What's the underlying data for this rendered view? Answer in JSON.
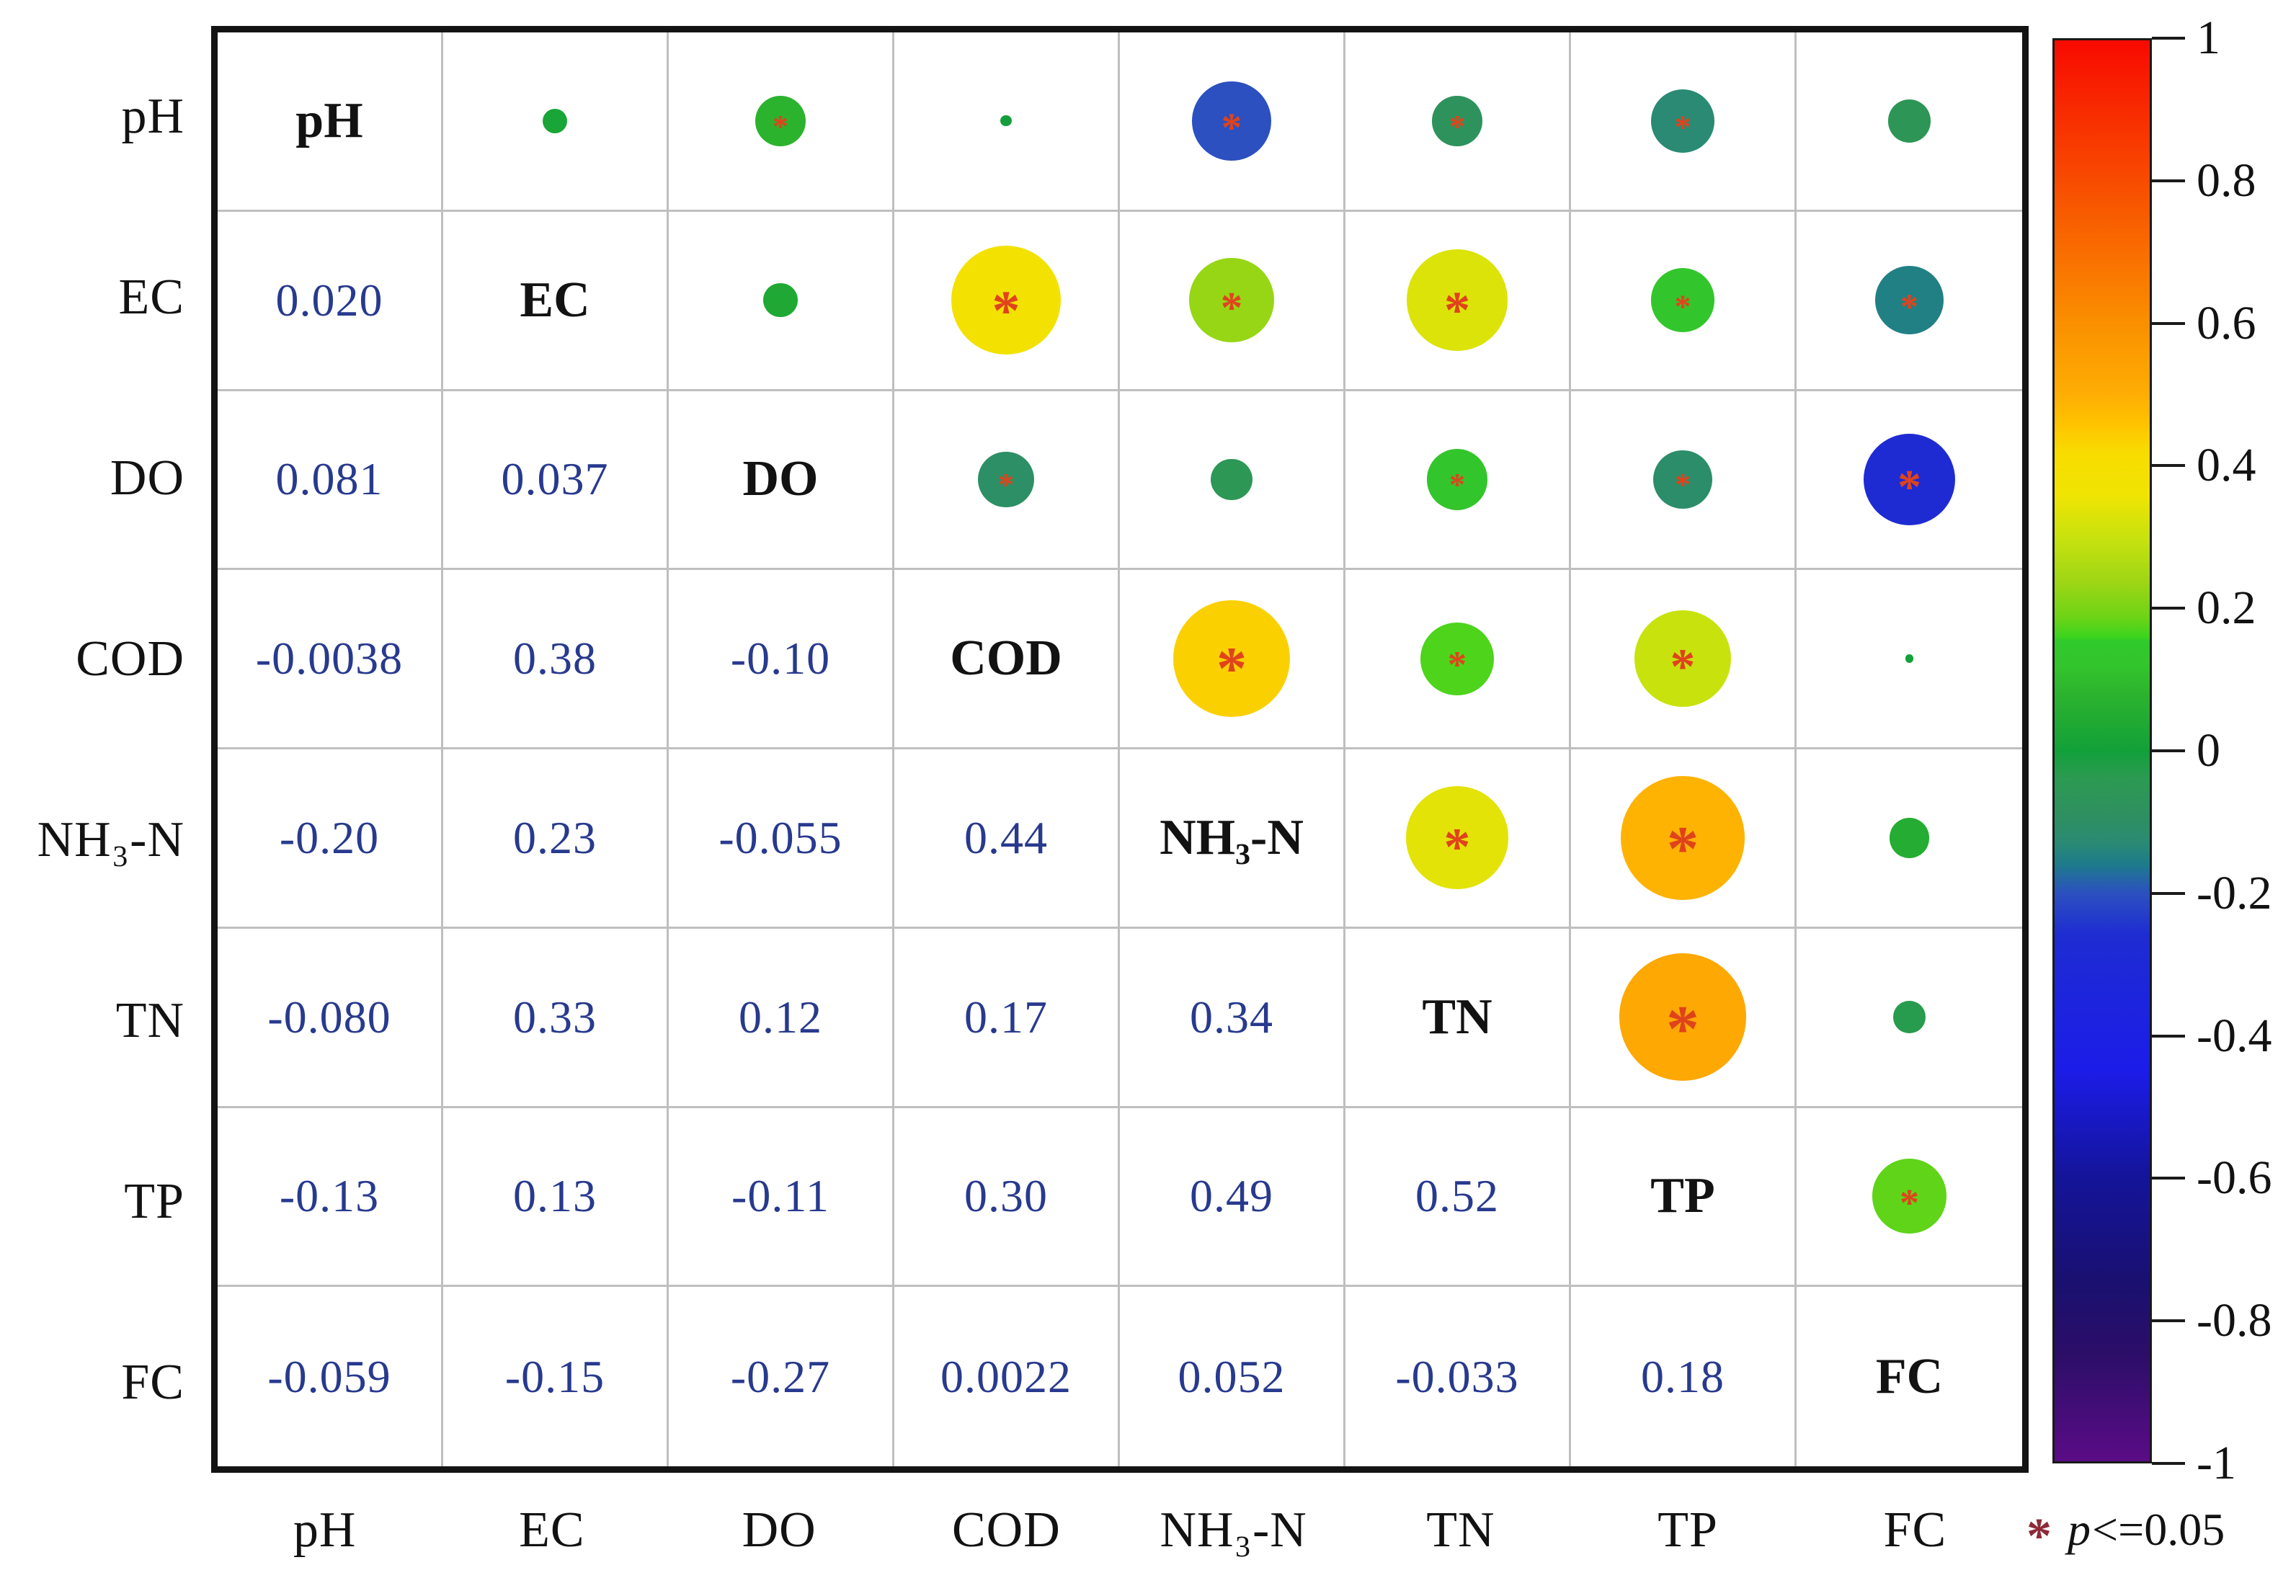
{
  "chart_data": {
    "type": "correlation-matrix",
    "keys": [
      "pH",
      "EC",
      "DO",
      "COD",
      "NH3-N",
      "TN",
      "TP",
      "FC"
    ],
    "variables": [
      "pH",
      "EC",
      "DO",
      "COD",
      "NH₃-N",
      "TN",
      "TP",
      "FC"
    ],
    "layout": {
      "lower_triangle": "correlation values (text)",
      "upper_triangle": "circles sized and colored by correlation",
      "diagonal": "variable names",
      "legend_position": "right colorbar"
    },
    "pairs": [
      {
        "row": "EC",
        "col": "pH",
        "r": 0.02,
        "label": "0.020",
        "sig": false
      },
      {
        "row": "DO",
        "col": "pH",
        "r": 0.081,
        "label": "0.081",
        "sig": true
      },
      {
        "row": "DO",
        "col": "EC",
        "r": 0.037,
        "label": "0.037",
        "sig": false
      },
      {
        "row": "COD",
        "col": "pH",
        "r": -0.0038,
        "label": "-0.0038",
        "sig": false
      },
      {
        "row": "COD",
        "col": "EC",
        "r": 0.38,
        "label": "0.38",
        "sig": true
      },
      {
        "row": "COD",
        "col": "DO",
        "r": -0.1,
        "label": "-0.10",
        "sig": true
      },
      {
        "row": "NH3-N",
        "col": "pH",
        "r": -0.2,
        "label": "-0.20",
        "sig": true
      },
      {
        "row": "NH3-N",
        "col": "EC",
        "r": 0.23,
        "label": "0.23",
        "sig": true
      },
      {
        "row": "NH3-N",
        "col": "DO",
        "r": -0.055,
        "label": "-0.055",
        "sig": false
      },
      {
        "row": "NH3-N",
        "col": "COD",
        "r": 0.44,
        "label": "0.44",
        "sig": true
      },
      {
        "row": "TN",
        "col": "pH",
        "r": -0.08,
        "label": "-0.080",
        "sig": true
      },
      {
        "row": "TN",
        "col": "EC",
        "r": 0.33,
        "label": "0.33",
        "sig": true
      },
      {
        "row": "TN",
        "col": "DO",
        "r": 0.12,
        "label": "0.12",
        "sig": true
      },
      {
        "row": "TN",
        "col": "COD",
        "r": 0.17,
        "label": "0.17",
        "sig": true
      },
      {
        "row": "TN",
        "col": "NH3-N",
        "r": 0.34,
        "label": "0.34",
        "sig": true
      },
      {
        "row": "TP",
        "col": "pH",
        "r": -0.13,
        "label": "-0.13",
        "sig": true
      },
      {
        "row": "TP",
        "col": "EC",
        "r": 0.13,
        "label": "0.13",
        "sig": true
      },
      {
        "row": "TP",
        "col": "DO",
        "r": -0.11,
        "label": "-0.11",
        "sig": true
      },
      {
        "row": "TP",
        "col": "COD",
        "r": 0.3,
        "label": "0.30",
        "sig": true
      },
      {
        "row": "TP",
        "col": "NH3-N",
        "r": 0.49,
        "label": "0.49",
        "sig": true
      },
      {
        "row": "TP",
        "col": "TN",
        "r": 0.52,
        "label": "0.52",
        "sig": true
      },
      {
        "row": "FC",
        "col": "pH",
        "r": -0.059,
        "label": "-0.059",
        "sig": false
      },
      {
        "row": "FC",
        "col": "EC",
        "r": -0.15,
        "label": "-0.15",
        "sig": true
      },
      {
        "row": "FC",
        "col": "DO",
        "r": -0.27,
        "label": "-0.27",
        "sig": true
      },
      {
        "row": "FC",
        "col": "COD",
        "r": 0.0022,
        "label": "0.0022",
        "sig": false
      },
      {
        "row": "FC",
        "col": "NH3-N",
        "r": 0.052,
        "label": "0.052",
        "sig": false
      },
      {
        "row": "FC",
        "col": "TN",
        "r": -0.033,
        "label": "-0.033",
        "sig": false
      },
      {
        "row": "FC",
        "col": "TP",
        "r": 0.18,
        "label": "0.18",
        "sig": true
      }
    ],
    "colorbar": {
      "range": [
        -1,
        1
      ],
      "ticks": [
        "1",
        "0.8",
        "0.6",
        "0.4",
        "0.2",
        "0",
        "-0.2",
        "-0.4",
        "-0.6",
        "-0.8",
        "-1"
      ],
      "stops": [
        {
          "v": 1.0,
          "c": "#f80a00"
        },
        {
          "v": 0.8,
          "c": "#f84c00"
        },
        {
          "v": 0.6,
          "c": "#fa9000"
        },
        {
          "v": 0.5,
          "c": "#feae04"
        },
        {
          "v": 0.46,
          "c": "#fec300"
        },
        {
          "v": 0.42,
          "c": "#f8dc00"
        },
        {
          "v": 0.36,
          "c": "#f0e403"
        },
        {
          "v": 0.3,
          "c": "#c8e20e"
        },
        {
          "v": 0.24,
          "c": "#a0d615"
        },
        {
          "v": 0.19,
          "c": "#70d416"
        },
        {
          "v": 0.16,
          "c": "#3cd41e"
        },
        {
          "v": 0.155,
          "c": "#2fca2c"
        },
        {
          "v": 0.12,
          "c": "#33c52c"
        },
        {
          "v": 0.08,
          "c": "#2cb32e"
        },
        {
          "v": 0.04,
          "c": "#20aa33"
        },
        {
          "v": 0.0,
          "c": "#12a03a"
        },
        {
          "v": -0.04,
          "c": "#2c9a52"
        },
        {
          "v": -0.09,
          "c": "#2e9060"
        },
        {
          "v": -0.13,
          "c": "#2a8a74"
        },
        {
          "v": -0.16,
          "c": "#1d7b8b"
        },
        {
          "v": -0.2,
          "c": "#2c50c0"
        },
        {
          "v": -0.26,
          "c": "#1e2cd2"
        },
        {
          "v": -0.45,
          "c": "#1c1ce8"
        },
        {
          "v": -0.6,
          "c": "#14149a"
        },
        {
          "v": -0.75,
          "c": "#1a1070"
        },
        {
          "v": -0.85,
          "c": "#2c0e68"
        },
        {
          "v": -1.0,
          "c": "#5a0c86"
        }
      ]
    },
    "note": {
      "symbol": "*",
      "p": "p",
      "threshold": "<=0.05"
    },
    "colors": {
      "value_text": "#283a8e",
      "label_text": "#121212",
      "gridline": "#bfbfbf",
      "significance_asterisk": "#e0431c",
      "note_asterisk": "#8e2a38"
    }
  }
}
